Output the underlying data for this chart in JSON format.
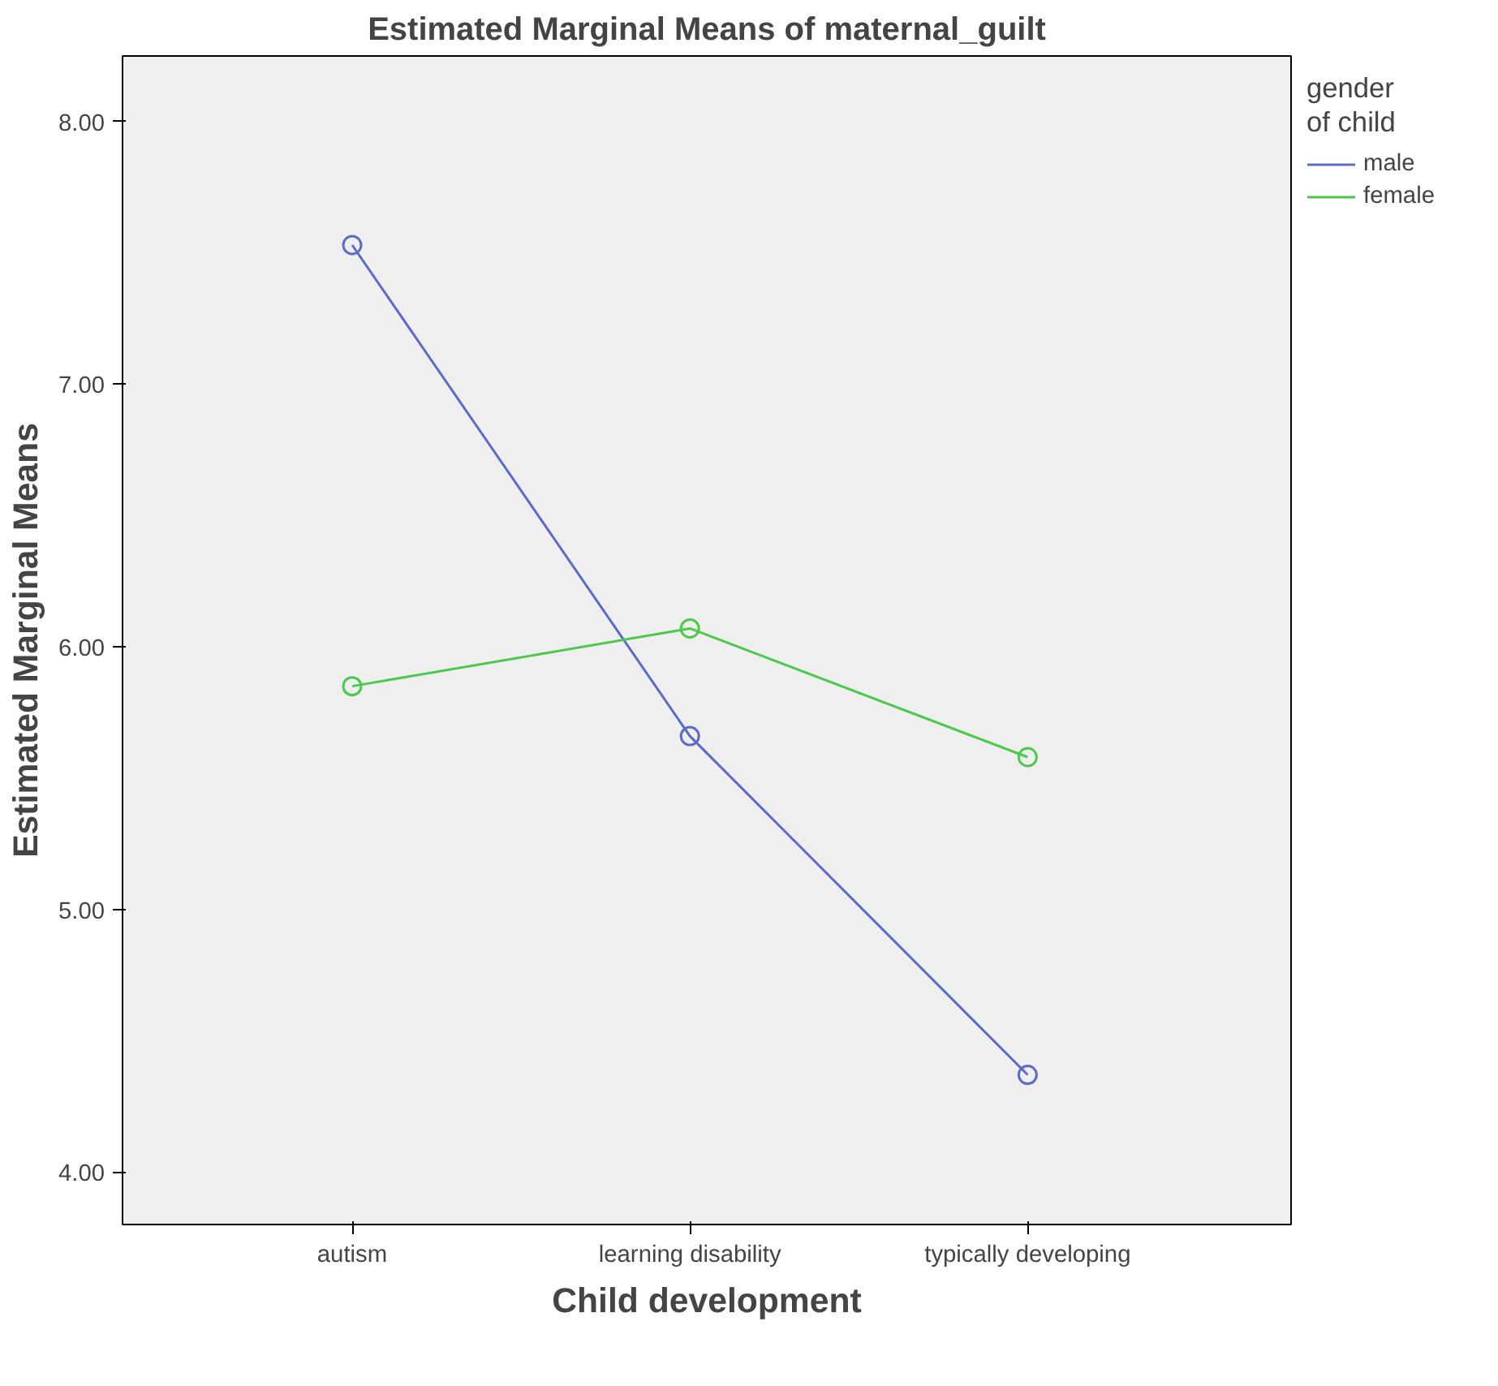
{
  "chart_data": {
    "type": "line",
    "title": "Estimated Marginal Means of maternal_guilt",
    "xlabel": "Child development",
    "ylabel": "Estimated Marginal Means",
    "legend_title": "gender of child",
    "categories": [
      "autism",
      "learning disability",
      "typically developing"
    ],
    "series": [
      {
        "name": "male",
        "color": "#5a6bc8",
        "values": [
          7.53,
          5.66,
          4.37
        ]
      },
      {
        "name": "female",
        "color": "#4cc94c",
        "values": [
          5.85,
          6.07,
          5.58
        ]
      }
    ],
    "ylim": [
      3.8,
      8.25
    ],
    "yticks": [
      {
        "value": 4,
        "label": "4.00"
      },
      {
        "value": 5,
        "label": "5.00"
      },
      {
        "value": 6,
        "label": "6.00"
      },
      {
        "value": 7,
        "label": "7.00"
      },
      {
        "value": 8,
        "label": "8.00"
      }
    ],
    "grid": false,
    "legend": "top right",
    "marker": "circle",
    "line_style": "solid"
  }
}
